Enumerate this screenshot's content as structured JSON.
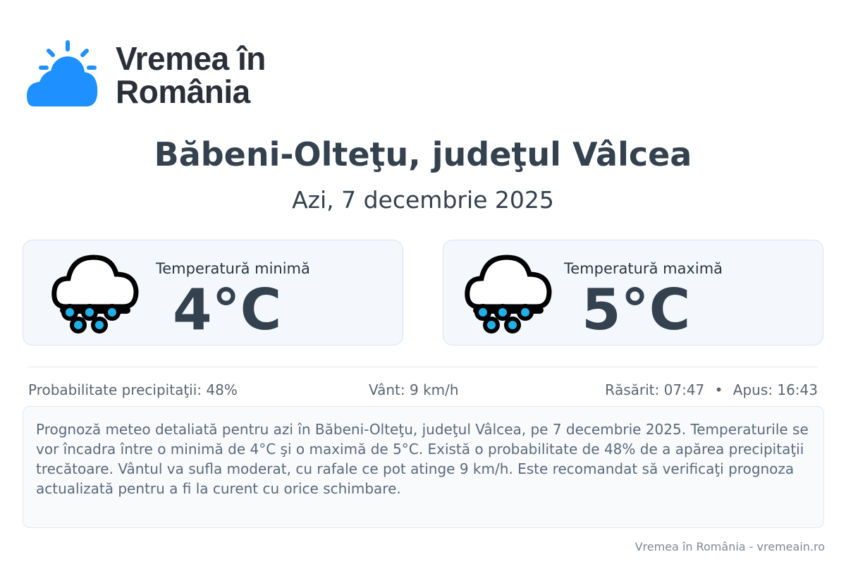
{
  "logo": {
    "text": "Vremea în România",
    "line1": "Vremea în",
    "line2": "România",
    "color": "#1e90ff"
  },
  "location": "Băbeni-Olteţu, judeţul Vâlcea",
  "date": "Azi, 7 decembrie 2025",
  "cards": [
    {
      "label": "Temperatură minimă",
      "value": "4°C",
      "icon": "rain-cloud-icon"
    },
    {
      "label": "Temperatură maximă",
      "value": "5°C",
      "icon": "rain-cloud-icon"
    }
  ],
  "stats": {
    "precipitation": "Probabilitate precipitaţii: 48%",
    "wind": "Vânt: 9 km/h",
    "sunrise": "Răsărit: 07:47",
    "separator": "•",
    "sunset": "Apus: 16:43"
  },
  "description": "Prognoză meteo detaliată pentru azi în Băbeni-Olteţu, judeţul Vâlcea, pe 7 decembrie 2025. Temperaturile se vor încadra între o minimă de 4°C şi o maximă de 5°C. Există o probabilitate de 48% de a apărea precipitaţii trecătoare. Vântul va sufla moderat, cu rafale ce pot atinge 9 km/h. Este recomandat să verificaţi prognoza actualizată pentru a fi la curent cu orice schimbare.",
  "footer": "Vremea în România - vremeain.ro"
}
